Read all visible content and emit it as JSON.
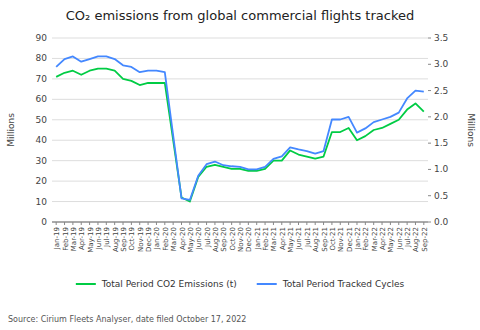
{
  "chart_data": {
    "type": "line",
    "title": "CO₂  emissions from global commercial flights tracked",
    "annotations": [
      "Source: Cirium Fleets Analyser, date filed October 17, 2022"
    ],
    "y_label": "Millions",
    "y2_label": "Millions",
    "categories": [
      "Jan-19",
      "Feb-19",
      "Mar-19",
      "Apr-19",
      "May-19",
      "Jun-19",
      "Jul-19",
      "Aug-19",
      "Sep-19",
      "Oct-19",
      "Nov-19",
      "Dec-19",
      "Jan-20",
      "Feb-20",
      "Mar-20",
      "Apr-20",
      "May-20",
      "Jun-20",
      "Jul-20",
      "Aug-20",
      "Sep-20",
      "Oct-20",
      "Nov-20",
      "Dec-20",
      "Jan-21",
      "Feb-21",
      "Mar-21",
      "Apr-21",
      "May-21",
      "Jun-21",
      "Jul-21",
      "Aug-21",
      "Sep-21",
      "Oct-21",
      "Nov-21",
      "Dec-21",
      "Jan-22",
      "Feb-22",
      "Mar-22",
      "Apr-22",
      "May-22",
      "Jun-22",
      "Jul-22",
      "Aug-22",
      "Sep-22"
    ],
    "series": [
      {
        "name": "Total Period CO2 Emissions (t)",
        "color": "#00cc44",
        "values": [
          71,
          73,
          74,
          72,
          74,
          75,
          75,
          74,
          70,
          69,
          67,
          68,
          68,
          68,
          40,
          12,
          10,
          22,
          27,
          28,
          27,
          26,
          26,
          25,
          25,
          26,
          30,
          30,
          35,
          33,
          32,
          31,
          32,
          44,
          44,
          46,
          40,
          42,
          45,
          46,
          48,
          50,
          55,
          58,
          54
        ]
      },
      {
        "name": "Total Period Tracked Cycles",
        "color": "#4488ff",
        "axis": "y2",
        "values": [
          2.95,
          3.1,
          3.15,
          3.05,
          3.1,
          3.15,
          3.15,
          3.1,
          2.98,
          2.95,
          2.85,
          2.88,
          2.88,
          2.85,
          1.65,
          0.45,
          0.42,
          0.88,
          1.1,
          1.15,
          1.08,
          1.06,
          1.05,
          1.0,
          1.0,
          1.05,
          1.2,
          1.25,
          1.42,
          1.38,
          1.35,
          1.3,
          1.35,
          1.95,
          1.95,
          2.0,
          1.7,
          1.78,
          1.9,
          1.95,
          2.0,
          2.08,
          2.35,
          2.5,
          2.48
        ]
      }
    ],
    "ylim": [
      0,
      90
    ],
    "yticks": [
      0,
      10,
      20,
      30,
      40,
      50,
      60,
      70,
      80,
      90
    ],
    "y2lim": [
      0,
      3.5
    ],
    "y2ticks": [
      {
        "value": 0,
        "label": "0.0"
      },
      0.5,
      {
        "value": 1.0,
        "label": "1.0"
      },
      1.5,
      {
        "value": 2.0,
        "label": "2.0"
      },
      2.5,
      {
        "value": 3.0,
        "label": "3.0"
      },
      3.5
    ],
    "grid": true,
    "legend": "bottom"
  }
}
